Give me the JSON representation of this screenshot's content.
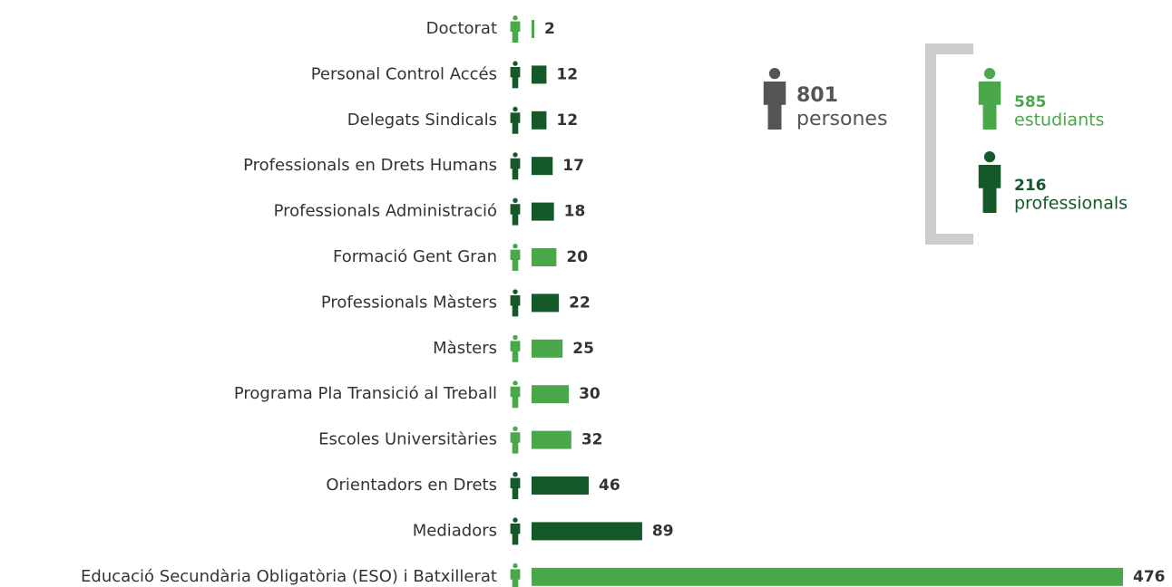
{
  "chart_data": {
    "type": "bar",
    "categories": [
      "Doctorat",
      "Personal Control Accés",
      "Delegats Sindicals",
      "Professionals en Drets Humans",
      "Professionals Administració",
      "Formació Gent Gran",
      "Professionals Màsters",
      "Màsters",
      "Programa Pla Transició al Treball",
      "Escoles Universitàries",
      "Orientadors en Drets",
      "Mediadors",
      "Educació Secundària Obligatòria (ESO) i Batxillerat"
    ],
    "series": [
      {
        "name": "estudiants",
        "color": "#4aa84a",
        "total": 585,
        "values": [
          2,
          null,
          null,
          null,
          null,
          20,
          null,
          25,
          30,
          32,
          null,
          null,
          476
        ]
      },
      {
        "name": "professionals",
        "color": "#15582a",
        "total": 216,
        "values": [
          null,
          12,
          12,
          17,
          18,
          null,
          22,
          null,
          null,
          null,
          46,
          89,
          null
        ]
      }
    ],
    "total_count": 801,
    "total_label": "persones",
    "total_color": "#555555",
    "xlim": [
      0,
      476
    ]
  }
}
